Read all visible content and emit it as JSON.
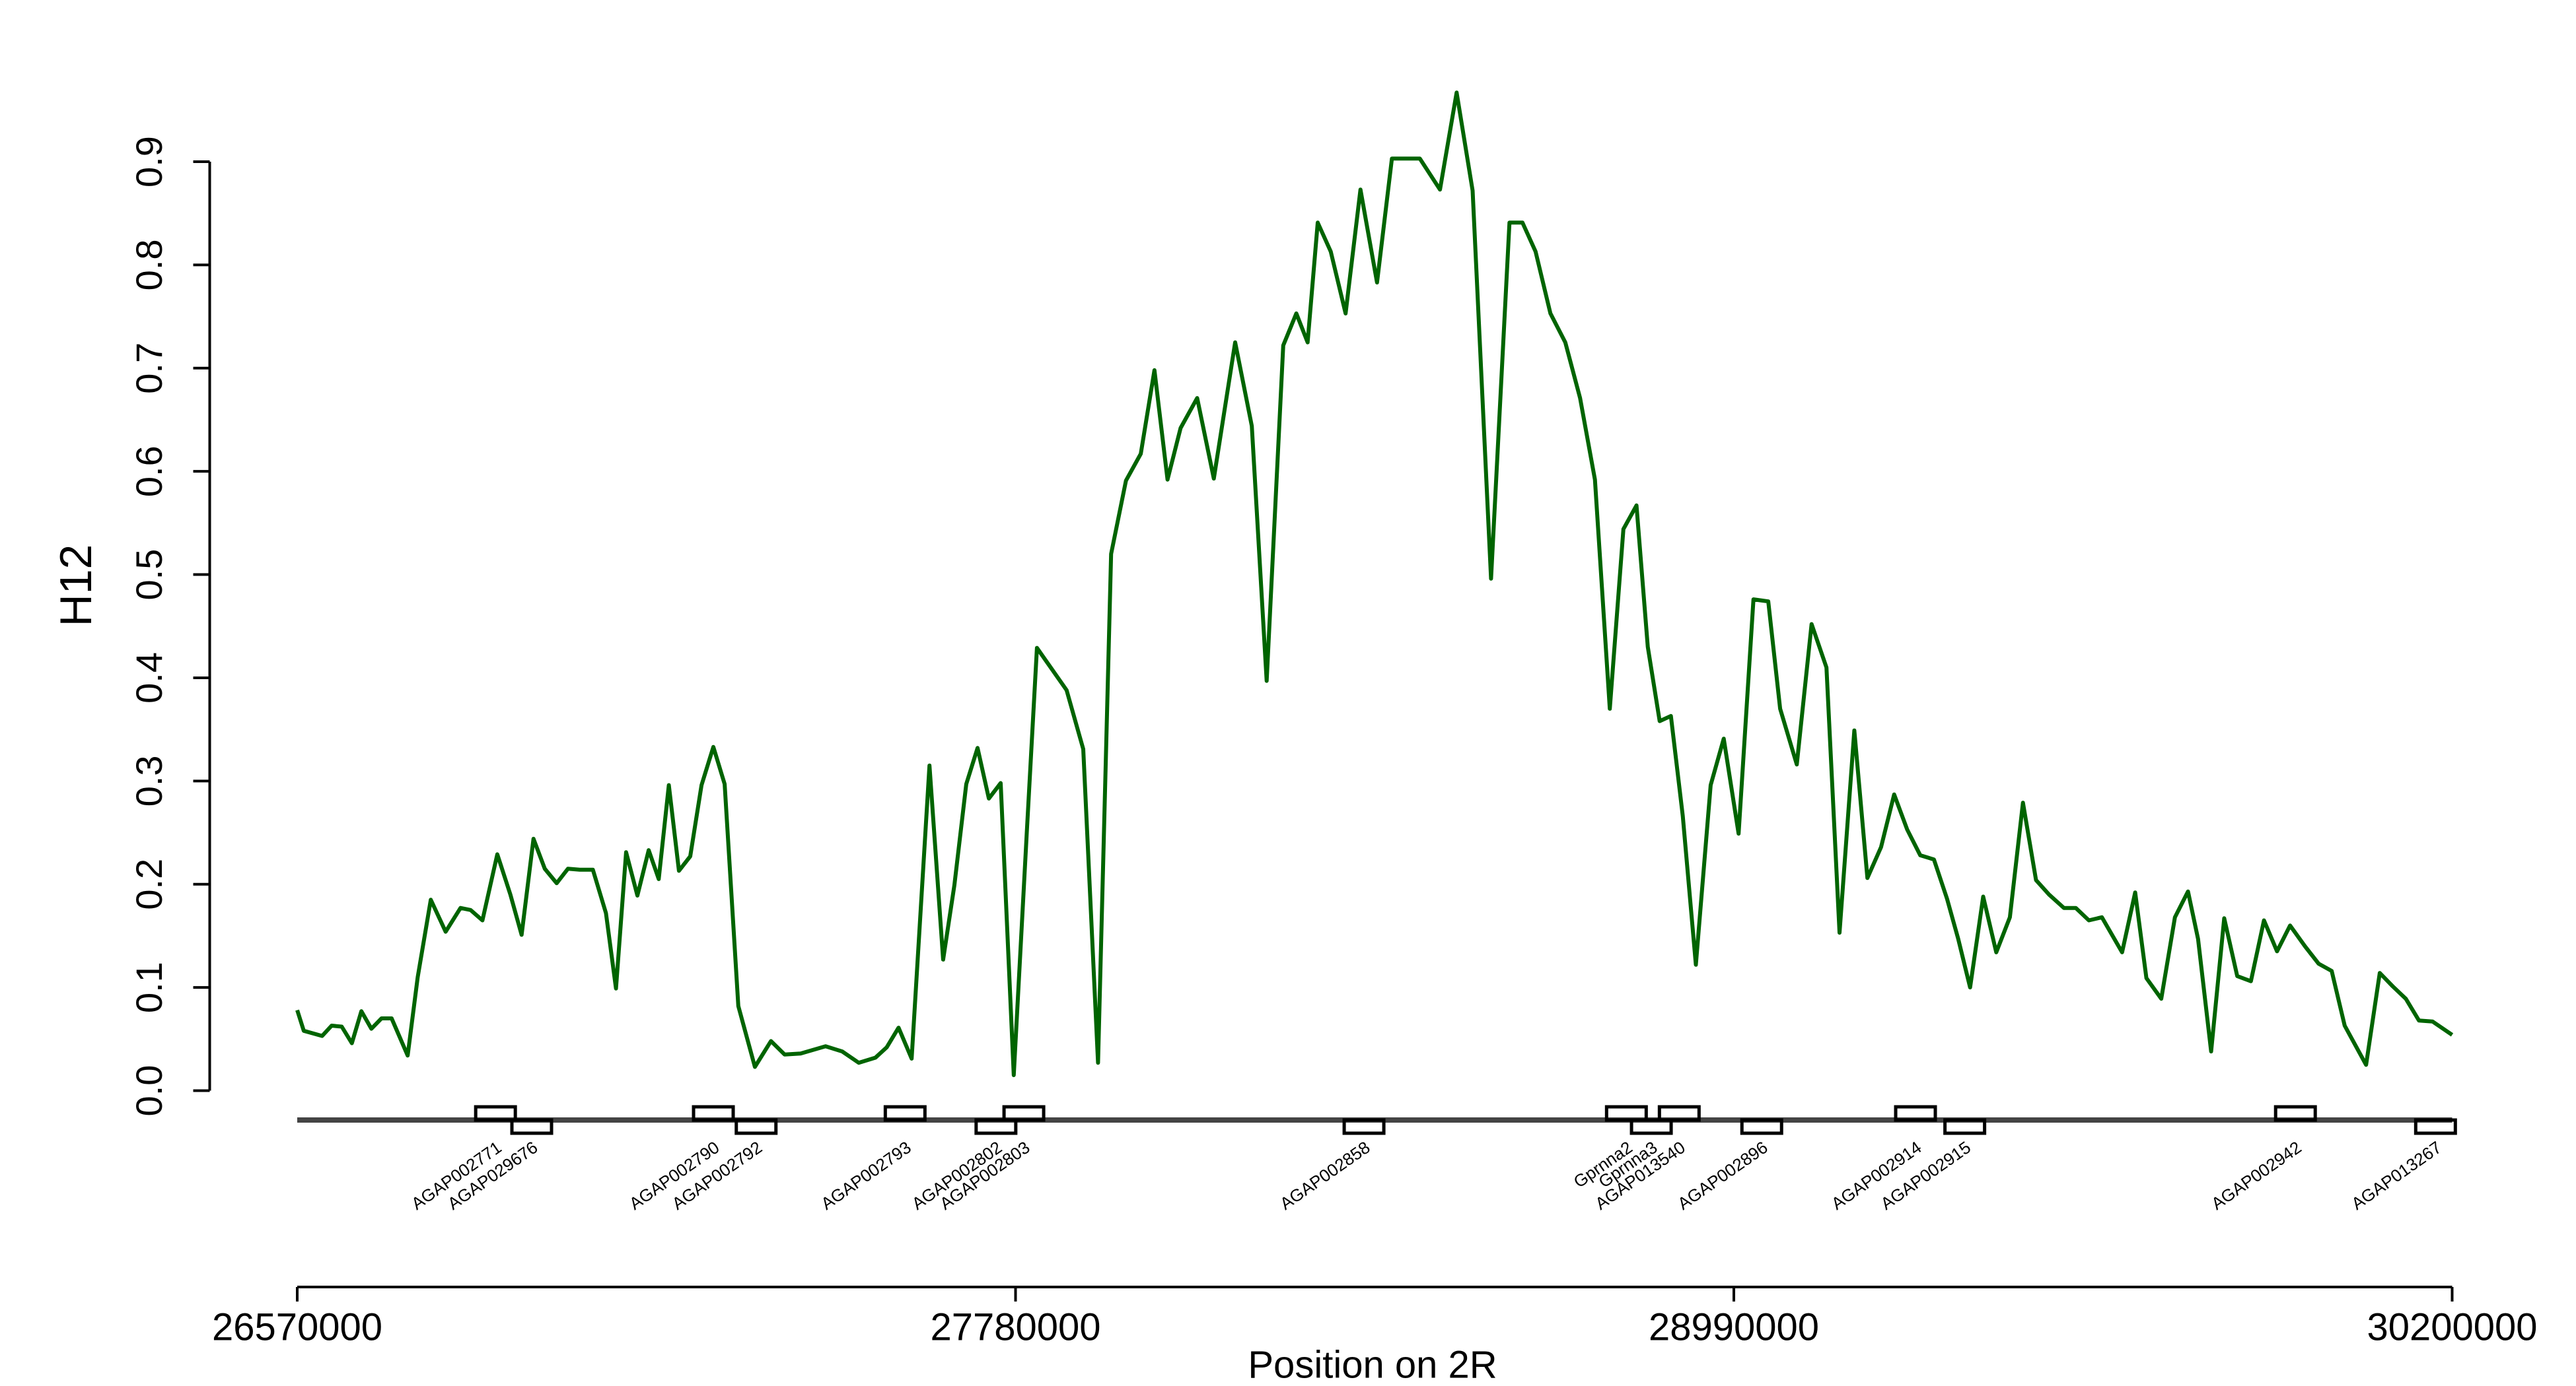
{
  "chart_data": {
    "type": "line",
    "ylabel": "H12",
    "xlabel": "Position on 2R",
    "xlim": [
      26570000,
      30200000
    ],
    "xticks": [
      26570000,
      27780000,
      28990000,
      30200000
    ],
    "ylim": [
      0,
      0.9
    ],
    "yticks": [
      {
        "value": 0,
        "label": "0.0"
      },
      0.1,
      0.2,
      0.3,
      0.4,
      0.5,
      0.6,
      0.7,
      0.8,
      0.9
    ],
    "x": [
      26570000,
      26581000,
      26612000,
      26628000,
      26645000,
      26662000,
      26678000,
      26695000,
      26712000,
      26729000,
      26756000,
      26773000,
      26795000,
      26820000,
      26845000,
      26862000,
      26882000,
      26907000,
      26929000,
      26948000,
      26968000,
      26987000,
      27007000,
      27026000,
      27046000,
      27068000,
      27090000,
      27107000,
      27124000,
      27143000,
      27162000,
      27179000,
      27196000,
      27213000,
      27232000,
      27251000,
      27271000,
      27290000,
      27313000,
      27341000,
      27368000,
      27391000,
      27418000,
      27460000,
      27488000,
      27516000,
      27544000,
      27563000,
      27583000,
      27605000,
      27635000,
      27658000,
      27677000,
      27697000,
      27716000,
      27735000,
      27755000,
      27777000,
      27799000,
      27816000,
      27866000,
      27894000,
      27919000,
      27941000,
      27966000,
      27991000,
      28014000,
      28036000,
      28058000,
      28086000,
      28114000,
      28150000,
      28178000,
      28203000,
      28231000,
      28253000,
      28272000,
      28289000,
      28311000,
      28336000,
      28361000,
      28389000,
      28414000,
      28461000,
      28495000,
      28523000,
      28550000,
      28581000,
      28612000,
      28634000,
      28656000,
      28681000,
      28706000,
      28731000,
      28756000,
      28781000,
      28804000,
      28826000,
      28845000,
      28865000,
      28884000,
      28904000,
      28926000,
      28951000,
      28973000,
      28998000,
      29023000,
      29048000,
      29068000,
      29096000,
      29121000,
      29146000,
      29168000,
      29193000,
      29215000,
      29238000,
      29260000,
      29282000,
      29304000,
      29327000,
      29349000,
      29368000,
      29388000,
      29410000,
      29432000,
      29455000,
      29477000,
      29499000,
      29521000,
      29546000,
      29566000,
      29588000,
      29610000,
      29644000,
      29666000,
      29685000,
      29710000,
      29733000,
      29755000,
      29772000,
      29794000,
      29816000,
      29838000,
      29861000,
      29883000,
      29905000,
      29927000,
      29952000,
      29975000,
      29997000,
      30019000,
      30055000,
      30078000,
      30100000,
      30122000,
      30144000,
      30167000,
      30200000
    ],
    "series": [
      {
        "color": "#006400",
        "values": [
          0.078,
          0.058,
          0.053,
          0.063,
          0.062,
          0.046,
          0.077,
          0.06,
          0.07,
          0.07,
          0.034,
          0.11,
          0.185,
          0.154,
          0.177,
          0.175,
          0.165,
          0.229,
          0.19,
          0.151,
          0.244,
          0.215,
          0.201,
          0.215,
          0.214,
          0.214,
          0.172,
          0.099,
          0.231,
          0.189,
          0.233,
          0.205,
          0.296,
          0.213,
          0.227,
          0.296,
          0.333,
          0.297,
          0.082,
          0.023,
          0.048,
          0.035,
          0.036,
          0.043,
          0.038,
          0.027,
          0.032,
          0.042,
          0.061,
          0.031,
          0.315,
          0.127,
          0.199,
          0.297,
          0.332,
          0.283,
          0.298,
          0.015,
          0.251,
          0.429,
          0.388,
          0.331,
          0.027,
          0.52,
          0.591,
          0.617,
          0.698,
          0.592,
          0.642,
          0.671,
          0.593,
          0.725,
          0.644,
          0.397,
          0.722,
          0.753,
          0.725,
          0.841,
          0.813,
          0.753,
          0.873,
          0.783,
          0.903,
          0.903,
          0.873,
          0.967,
          0.872,
          0.496,
          0.841,
          0.841,
          0.813,
          0.753,
          0.725,
          0.671,
          0.592,
          0.37,
          0.544,
          0.567,
          0.43,
          0.358,
          0.363,
          0.266,
          0.122,
          0.296,
          0.341,
          0.249,
          0.476,
          0.474,
          0.37,
          0.316,
          0.452,
          0.41,
          0.153,
          0.349,
          0.206,
          0.236,
          0.287,
          0.253,
          0.228,
          0.224,
          0.186,
          0.147,
          0.1,
          0.188,
          0.134,
          0.168,
          0.279,
          0.204,
          0.19,
          0.177,
          0.177,
          0.165,
          0.168,
          0.134,
          0.192,
          0.109,
          0.089,
          0.168,
          0.193,
          0.147,
          0.038,
          0.167,
          0.111,
          0.106,
          0.165,
          0.135,
          0.16,
          0.14,
          0.123,
          0.116,
          0.063,
          0.025,
          0.114,
          0.101,
          0.089,
          0.068,
          0.067,
          0.054
        ]
      }
    ],
    "genes": [
      {
        "name": "AGAP002771",
        "x": 26904000
      },
      {
        "name": "AGAP029676",
        "x": 26965000
      },
      {
        "name": "AGAP002790",
        "x": 27271000
      },
      {
        "name": "AGAP002792",
        "x": 27343000
      },
      {
        "name": "AGAP002793",
        "x": 27594000
      },
      {
        "name": "AGAP002802",
        "x": 27747000
      },
      {
        "name": "AGAP002803",
        "x": 27794000
      },
      {
        "name": "AGAP002858",
        "x": 28367000
      },
      {
        "name": "Gprnna2",
        "x": 28809000
      },
      {
        "name": "Gprnna3",
        "x": 28851000
      },
      {
        "name": "AGAP013540",
        "x": 28898000
      },
      {
        "name": "AGAP002896",
        "x": 29037000
      },
      {
        "name": "AGAP002914",
        "x": 29296000
      },
      {
        "name": "AGAP002915",
        "x": 29379000
      },
      {
        "name": "AGAP002942",
        "x": 29936000
      },
      {
        "name": "AGAP013267",
        "x": 30172000
      }
    ]
  }
}
